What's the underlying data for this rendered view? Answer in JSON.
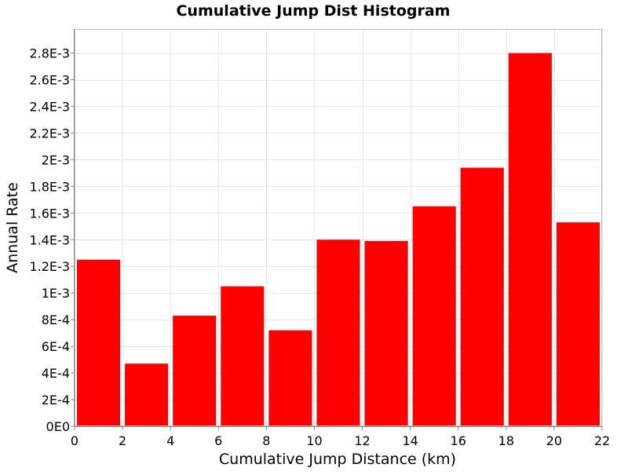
{
  "chart_data": {
    "type": "bar",
    "title": "Cumulative Jump Dist Histogram",
    "xlabel": "Cumulative Jump Distance (km)",
    "ylabel": "Annual Rate",
    "xlim": [
      0,
      22
    ],
    "ylim": [
      0,
      0.00298
    ],
    "grid": true,
    "legend": "none",
    "bar_color": "#ff0000",
    "grid_color": "#e8e8e8",
    "bins": [
      {
        "x0": 0,
        "x1": 2,
        "value": 0.00125
      },
      {
        "x0": 2,
        "x1": 4,
        "value": 0.00047
      },
      {
        "x0": 4,
        "x1": 6,
        "value": 0.00083
      },
      {
        "x0": 6,
        "x1": 8,
        "value": 0.00105
      },
      {
        "x0": 8,
        "x1": 10,
        "value": 0.00072
      },
      {
        "x0": 10,
        "x1": 12,
        "value": 0.0014
      },
      {
        "x0": 12,
        "x1": 14,
        "value": 0.00139
      },
      {
        "x0": 14,
        "x1": 16,
        "value": 0.00165
      },
      {
        "x0": 16,
        "x1": 18,
        "value": 0.00194
      },
      {
        "x0": 18,
        "x1": 20,
        "value": 0.0028
      },
      {
        "x0": 20,
        "x1": 22,
        "value": 0.00153
      }
    ],
    "x_ticks": [
      {
        "value": 0,
        "label": "0"
      },
      {
        "value": 2,
        "label": "2"
      },
      {
        "value": 4,
        "label": "4"
      },
      {
        "value": 6,
        "label": "6"
      },
      {
        "value": 8,
        "label": "8"
      },
      {
        "value": 10,
        "label": "10"
      },
      {
        "value": 12,
        "label": "12"
      },
      {
        "value": 14,
        "label": "14"
      },
      {
        "value": 16,
        "label": "16"
      },
      {
        "value": 18,
        "label": "18"
      },
      {
        "value": 20,
        "label": "20"
      },
      {
        "value": 22,
        "label": "22"
      }
    ],
    "y_ticks": [
      {
        "value": 0,
        "label": "0E0"
      },
      {
        "value": 0.0002,
        "label": "2E-4"
      },
      {
        "value": 0.0004,
        "label": "4E-4"
      },
      {
        "value": 0.0006,
        "label": "6E-4"
      },
      {
        "value": 0.0008,
        "label": "8E-4"
      },
      {
        "value": 0.001,
        "label": "1E-3"
      },
      {
        "value": 0.0012,
        "label": "1.2E-3"
      },
      {
        "value": 0.0014,
        "label": "1.4E-3"
      },
      {
        "value": 0.0016,
        "label": "1.6E-3"
      },
      {
        "value": 0.0018,
        "label": "1.8E-3"
      },
      {
        "value": 0.002,
        "label": "2E-3"
      },
      {
        "value": 0.0022,
        "label": "2.2E-3"
      },
      {
        "value": 0.0024,
        "label": "2.4E-3"
      },
      {
        "value": 0.0026,
        "label": "2.6E-3"
      },
      {
        "value": 0.0028,
        "label": "2.8E-3"
      }
    ]
  }
}
